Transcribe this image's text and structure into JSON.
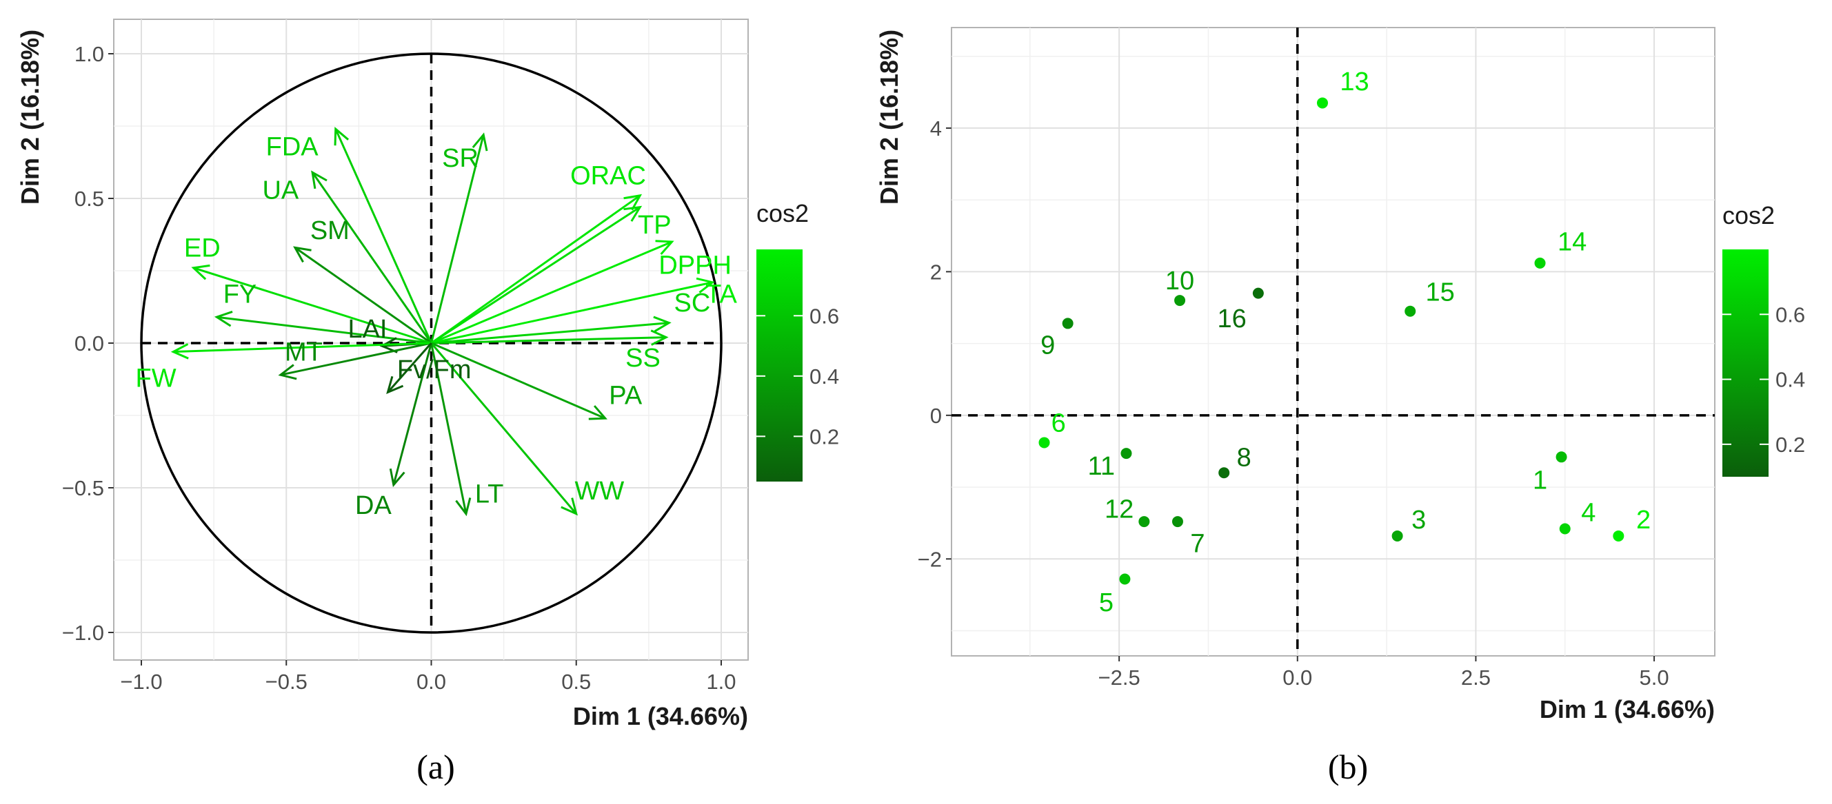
{
  "chart_data": [
    {
      "type": "scatter",
      "subtype": "pca-variable-correlation-circle",
      "panel_label": "(a)",
      "xlabel": "Dim 1 (34.66%)",
      "ylabel": "Dim 2 (16.18%)",
      "xlim": [
        -1.0,
        1.0
      ],
      "ylim": [
        -1.0,
        1.0
      ],
      "xticks": [
        -1.0,
        -0.5,
        0.0,
        0.5,
        1.0
      ],
      "yticks": [
        -1.0,
        -0.5,
        0.0,
        0.5,
        1.0
      ],
      "xtick_labels": [
        "−1.0",
        "−0.5",
        "0.0",
        "0.5",
        "1.0"
      ],
      "ytick_labels": [
        "−1.0",
        "−0.5",
        "0.0",
        "0.5",
        "1.0"
      ],
      "grid": true,
      "legend": {
        "title": "cos2",
        "ticks": [
          0.2,
          0.4,
          0.6
        ],
        "tick_labels": [
          "0.2",
          "0.4",
          "0.6"
        ],
        "range": [
          0.05,
          0.82
        ],
        "placement": "right"
      },
      "variables": [
        {
          "name": "FDA",
          "x": -0.33,
          "y": 0.74,
          "cos2": 0.66,
          "lx": -0.48,
          "ly": 0.68
        },
        {
          "name": "UA",
          "x": -0.41,
          "y": 0.59,
          "cos2": 0.52,
          "lx": -0.52,
          "ly": 0.53
        },
        {
          "name": "SM",
          "x": -0.47,
          "y": 0.33,
          "cos2": 0.33,
          "lx": -0.35,
          "ly": 0.39
        },
        {
          "name": "ED",
          "x": -0.82,
          "y": 0.26,
          "cos2": 0.74,
          "lx": -0.79,
          "ly": 0.33
        },
        {
          "name": "FY",
          "x": -0.74,
          "y": 0.09,
          "cos2": 0.55,
          "lx": -0.66,
          "ly": 0.17
        },
        {
          "name": "LAI",
          "x": -0.17,
          "y": -0.01,
          "cos2": 0.03,
          "lx": -0.22,
          "ly": 0.05
        },
        {
          "name": "MT",
          "x": -0.52,
          "y": -0.11,
          "cos2": 0.28,
          "lx": -0.44,
          "ly": -0.03
        },
        {
          "name": "FW",
          "x": -0.89,
          "y": -0.03,
          "cos2": 0.79,
          "lx": -0.95,
          "ly": -0.12
        },
        {
          "name": "SR",
          "x": 0.18,
          "y": 0.72,
          "cos2": 0.55,
          "lx": 0.1,
          "ly": 0.64
        },
        {
          "name": "ORAC",
          "x": 0.72,
          "y": 0.51,
          "cos2": 0.78,
          "lx": 0.61,
          "ly": 0.58
        },
        {
          "name": "TP",
          "x": 0.72,
          "y": 0.47,
          "cos2": 0.74,
          "lx": 0.77,
          "ly": 0.41
        },
        {
          "name": "DPPH",
          "x": 0.83,
          "y": 0.35,
          "cos2": 0.81,
          "lx": 0.91,
          "ly": 0.27
        },
        {
          "name": "SC",
          "x": 0.82,
          "y": 0.07,
          "cos2": 0.68,
          "lx": 0.9,
          "ly": 0.14
        },
        {
          "name": "TA",
          "x": 0.97,
          "y": 0.21,
          "cos2": 0.82,
          "lx": 1.0,
          "ly": 0.17
        },
        {
          "name": "SS",
          "x": 0.81,
          "y": 0.02,
          "cos2": 0.66,
          "lx": 0.73,
          "ly": -0.05
        },
        {
          "name": "PA",
          "x": 0.6,
          "y": -0.26,
          "cos2": 0.43,
          "lx": 0.67,
          "ly": -0.18
        },
        {
          "name": "WW",
          "x": 0.5,
          "y": -0.59,
          "cos2": 0.6,
          "lx": 0.58,
          "ly": -0.51
        },
        {
          "name": "LT",
          "x": 0.12,
          "y": -0.59,
          "cos2": 0.36,
          "lx": 0.2,
          "ly": -0.52
        },
        {
          "name": "DA",
          "x": -0.13,
          "y": -0.49,
          "cos2": 0.26,
          "lx": -0.2,
          "ly": -0.56
        },
        {
          "name": "Fv/Fm",
          "x": -0.15,
          "y": -0.17,
          "cos2": 0.05,
          "lx": 0.01,
          "ly": -0.09
        }
      ],
      "circle_radius": 1.0
    },
    {
      "type": "scatter",
      "subtype": "pca-individuals",
      "panel_label": "(b)",
      "xlabel": "Dim 1 (34.66%)",
      "ylabel": "Dim 2 (16.18%)",
      "xlim": [
        -4.85,
        5.85
      ],
      "ylim": [
        -3.35,
        5.4
      ],
      "xticks": [
        -2.5,
        0.0,
        2.5,
        5.0
      ],
      "yticks": [
        -2,
        0,
        2,
        4
      ],
      "xtick_labels": [
        "−2.5",
        "0.0",
        "2.5",
        "5.0"
      ],
      "ytick_labels": [
        "−2",
        "0",
        "2",
        "4"
      ],
      "grid": true,
      "legend": {
        "title": "cos2",
        "ticks": [
          0.2,
          0.4,
          0.6
        ],
        "tick_labels": [
          "0.2",
          "0.4",
          "0.6"
        ],
        "range": [
          0.1,
          0.8
        ],
        "placement": "right"
      },
      "points": [
        {
          "label": "13",
          "x": 0.35,
          "y": 4.35,
          "cos2": 0.78,
          "lx": 0.8,
          "ly": 4.65
        },
        {
          "label": "14",
          "x": 3.4,
          "y": 2.12,
          "cos2": 0.68,
          "lx": 3.85,
          "ly": 2.42
        },
        {
          "label": "15",
          "x": 1.58,
          "y": 1.45,
          "cos2": 0.48,
          "lx": 2.0,
          "ly": 1.72
        },
        {
          "label": "10",
          "x": -1.65,
          "y": 1.6,
          "cos2": 0.4,
          "lx": -1.65,
          "ly": 1.88
        },
        {
          "label": "16",
          "x": -0.55,
          "y": 1.7,
          "cos2": 0.18,
          "lx": -0.92,
          "ly": 1.35
        },
        {
          "label": "9",
          "x": -3.22,
          "y": 1.28,
          "cos2": 0.32,
          "lx": -3.5,
          "ly": 0.98
        },
        {
          "label": "6",
          "x": -3.55,
          "y": -0.38,
          "cos2": 0.75,
          "lx": -3.35,
          "ly": -0.1
        },
        {
          "label": "11",
          "x": -2.4,
          "y": -0.53,
          "cos2": 0.38,
          "lx": -2.75,
          "ly": -0.7
        },
        {
          "label": "8",
          "x": -1.03,
          "y": -0.8,
          "cos2": 0.18,
          "lx": -0.75,
          "ly": -0.58
        },
        {
          "label": "12",
          "x": -2.15,
          "y": -1.48,
          "cos2": 0.42,
          "lx": -2.5,
          "ly": -1.3
        },
        {
          "label": "7",
          "x": -1.68,
          "y": -1.48,
          "cos2": 0.35,
          "lx": -1.4,
          "ly": -1.78
        },
        {
          "label": "5",
          "x": -2.42,
          "y": -2.28,
          "cos2": 0.6,
          "lx": -2.68,
          "ly": -2.6
        },
        {
          "label": "3",
          "x": 1.4,
          "y": -1.68,
          "cos2": 0.45,
          "lx": 1.7,
          "ly": -1.45
        },
        {
          "label": "1",
          "x": 3.7,
          "y": -0.58,
          "cos2": 0.55,
          "lx": 3.4,
          "ly": -0.9
        },
        {
          "label": "4",
          "x": 3.75,
          "y": -1.58,
          "cos2": 0.68,
          "lx": 4.08,
          "ly": -1.35
        },
        {
          "label": "2",
          "x": 4.5,
          "y": -1.68,
          "cos2": 0.8,
          "lx": 4.85,
          "ly": -1.45
        }
      ]
    }
  ]
}
